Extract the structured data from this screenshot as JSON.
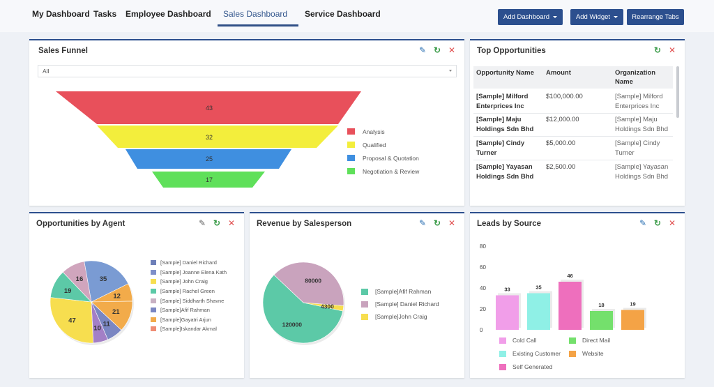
{
  "nav": {
    "tabs": [
      {
        "label": "My Dashboard"
      },
      {
        "label": "Tasks"
      },
      {
        "label": "Employee Dashboard"
      },
      {
        "label": "Sales Dashboard"
      },
      {
        "label": "Service Dashboard"
      }
    ],
    "active_tab": "Sales Dashboard",
    "buttons": {
      "add_dashboard": "Add Dashboard",
      "add_widget": "Add Widget",
      "rearrange": "Rearrange Tabs"
    }
  },
  "icons": [
    "pencil-icon",
    "refresh-icon",
    "close-icon",
    "chevron-down-icon"
  ],
  "colors": {
    "accent": "#2c4f8e",
    "edit": "#2a6fb2",
    "refresh": "#3a9b48",
    "close": "#e14f4f"
  },
  "sales_funnel": {
    "title": "Sales Funnel",
    "filter_value": "All",
    "stages": [
      {
        "label": "Analysis",
        "value": 43,
        "color": "#e8505b"
      },
      {
        "label": "Qualified",
        "value": 32,
        "color": "#f3ee3c"
      },
      {
        "label": "Proposal & Quotation",
        "value": 25,
        "color": "#3f8fe0"
      },
      {
        "label": "Negotiation & Review",
        "value": 17,
        "color": "#5fe05a"
      }
    ]
  },
  "top_opportunities": {
    "title": "Top Opportunities",
    "columns": [
      "Opportunity Name",
      "Amount",
      "Organization Name"
    ],
    "rows": [
      {
        "name": "[Sample] Milford Enterprices Inc",
        "amount": "$100,000.00",
        "org": "[Sample] Milford Enterprices Inc"
      },
      {
        "name": "[Sample] Maju Holdings Sdn Bhd",
        "amount": "$12,000.00",
        "org": "[Sample] Maju Holdings Sdn Bhd"
      },
      {
        "name": "[Sample] Cindy Turner",
        "amount": "$5,000.00",
        "org": "[Sample] Cindy Turner"
      },
      {
        "name": "[Sample] Yayasan Holdings Sdn Bhd",
        "amount": "$2,500.00",
        "org": "[Sample] Yayasan Holdings Sdn Bhd"
      }
    ]
  },
  "opp_by_agent": {
    "title": "Opportunities by Agent"
  },
  "revenue": {
    "title": "Revenue by Salesperson"
  },
  "leads": {
    "title": "Leads by Source"
  },
  "chart_data": [
    {
      "type": "pie",
      "title": "Opportunities by Agent",
      "labels": [
        "[Sample] Daniel Richard",
        "[Sample] Joanne Elena Kath",
        "[Sample] John Craig",
        "[Sample] Rachel Green",
        "[Sample] Siddharth Shavne",
        "[Sample]Afif Rahman",
        "[Sample]Gayatri Arjun",
        "[Sample]Iskandar Akmal"
      ],
      "values": [
        35,
        12,
        21,
        11,
        10,
        47,
        19,
        16
      ],
      "colors": [
        "#7a9bd3",
        "#f2ab4a",
        "#f2ab4a",
        "#7a86c2",
        "#a37fc6",
        "#f7de4f",
        "#5cc9a7",
        "#d0a5bd"
      ],
      "legend_colors": [
        "#6d7fb8",
        "#7f8fc9",
        "#f7de4f",
        "#5cc9a7",
        "#c8b1c3",
        "#7a86c2",
        "#f2ab4a",
        "#ef8c73"
      ]
    },
    {
      "type": "pie",
      "title": "Revenue by Salesperson",
      "labels": [
        "[Sample]Afif Rahman",
        "[Sample] Daniel Richard",
        "[Sample]John Craig"
      ],
      "values": [
        120000,
        80000,
        4300
      ],
      "colors": [
        "#5cc9a7",
        "#c9a3bd",
        "#f7de4f"
      ]
    },
    {
      "type": "bar",
      "title": "Leads by Source",
      "categories": [
        "Cold Call",
        "Existing Customer",
        "Self Generated",
        "Direct Mail",
        "Website"
      ],
      "values": [
        33,
        35,
        46,
        18,
        19
      ],
      "colors": [
        "#f19ee9",
        "#8ff0e6",
        "#ee6fbd",
        "#74e06c",
        "#f4a346"
      ],
      "y_ticks": [
        0,
        20,
        40,
        60,
        80
      ],
      "ylim": [
        0,
        80
      ]
    }
  ]
}
